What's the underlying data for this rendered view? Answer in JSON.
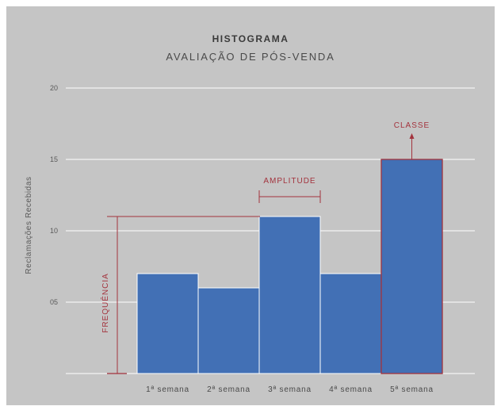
{
  "chart_data": {
    "type": "bar",
    "title": "HISTOGRAMA",
    "subtitle": "AVALIAÇÃO DE PÓS-VENDA",
    "xlabel": "",
    "ylabel": "Reclamações Recebidas",
    "categories": [
      "1ª semana",
      "2ª semana",
      "3ª semana",
      "4ª semana",
      "5ª semana"
    ],
    "values": [
      7,
      6,
      11,
      7,
      15
    ],
    "ylim": [
      0,
      20
    ],
    "yticks": [
      5,
      10,
      15,
      20
    ],
    "ytick_labels": [
      "05",
      "10",
      "15",
      "20"
    ],
    "grid": true,
    "annotations": {
      "frequency": "FREQUÊNCIA",
      "amplitude": "AMPLITUDE",
      "class": "CLASSE"
    },
    "colors": {
      "bar": "#4270b5",
      "annotation": "#a3333d",
      "background": "#c5c5c5",
      "grid": "#ffffff"
    }
  }
}
